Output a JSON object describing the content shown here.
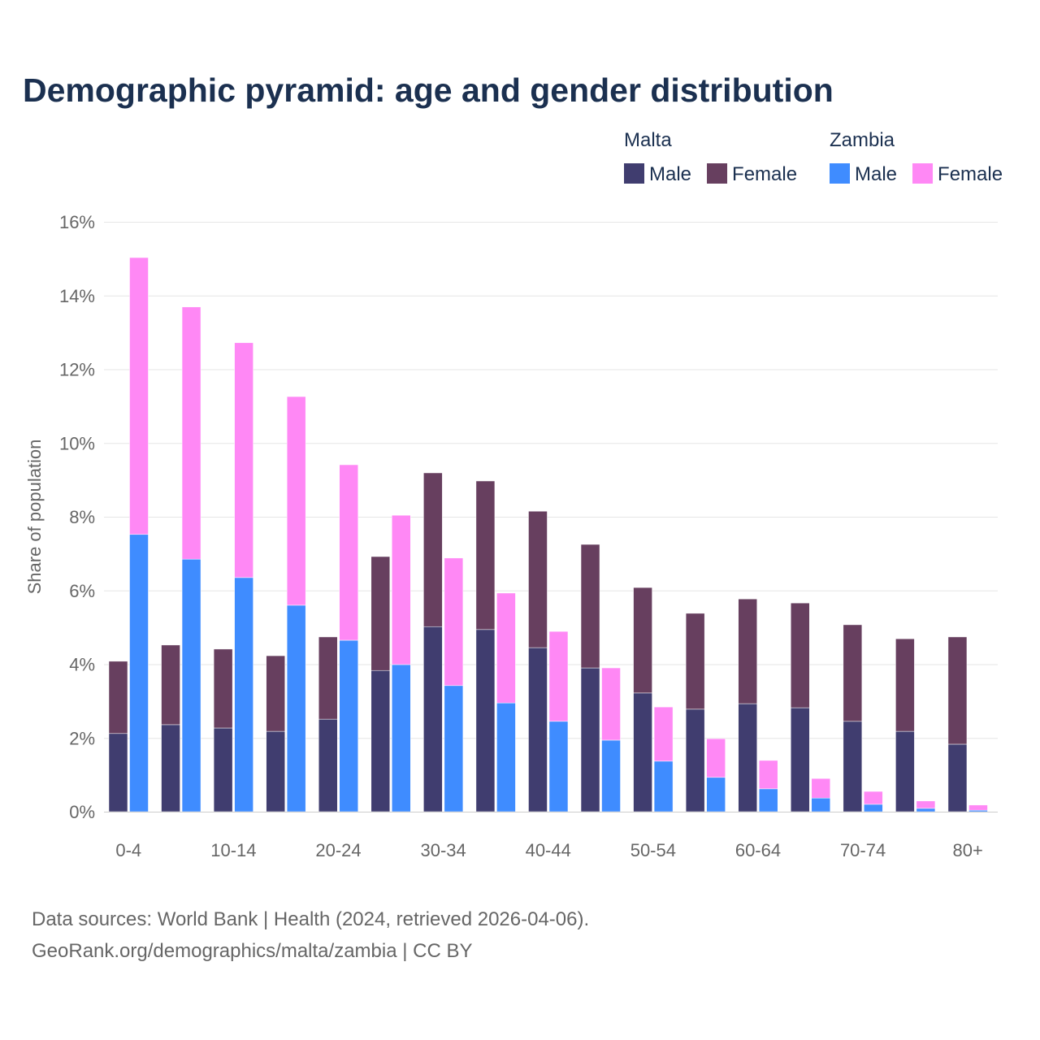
{
  "chart_data": {
    "type": "bar",
    "title": "Demographic pyramid: age and gender distribution",
    "ylabel": "Share of population",
    "xlabel": "",
    "ylim": [
      0,
      16
    ],
    "yticks": [
      "0%",
      "2%",
      "4%",
      "6%",
      "8%",
      "10%",
      "12%",
      "14%",
      "16%"
    ],
    "ytick_values": [
      0,
      2,
      4,
      6,
      8,
      10,
      12,
      14,
      16
    ],
    "grid": true,
    "legend_position": "top-right",
    "categories": [
      "0-4",
      "5-9",
      "10-14",
      "15-19",
      "20-24",
      "25-29",
      "30-34",
      "35-39",
      "40-44",
      "45-49",
      "50-54",
      "55-59",
      "60-64",
      "65-69",
      "70-74",
      "75-79",
      "80+"
    ],
    "shown_tick_labels": [
      "0-4",
      "10-14",
      "20-24",
      "30-34",
      "40-44",
      "50-54",
      "60-64",
      "70-74",
      "80+"
    ],
    "groups": [
      {
        "name": "Malta",
        "series": [
          {
            "name": "Male",
            "color": "#403d6f",
            "values": [
              2.12,
              2.36,
              2.27,
              2.18,
              2.51,
              3.83,
              5.02,
              4.94,
              4.45,
              3.9,
              3.22,
              2.78,
              2.93,
              2.82,
              2.45,
              2.18,
              1.83
            ]
          },
          {
            "name": "Female",
            "color": "#673f5f",
            "values": [
              1.96,
              2.16,
              2.14,
              2.05,
              2.23,
              3.09,
              4.17,
              4.03,
              3.7,
              3.35,
              2.86,
              2.6,
              2.84,
              2.84,
              2.62,
              2.51,
              2.91
            ]
          }
        ]
      },
      {
        "name": "Zambia",
        "series": [
          {
            "name": "Male",
            "color": "#3f8cff",
            "values": [
              7.52,
              6.85,
              6.35,
              5.6,
              4.65,
              3.99,
              3.42,
              2.95,
              2.45,
              1.94,
              1.37,
              0.93,
              0.62,
              0.37,
              0.2,
              0.09,
              0.04
            ]
          },
          {
            "name": "Female",
            "color": "#ff88f5",
            "values": [
              7.51,
              6.84,
              6.37,
              5.66,
              4.76,
              4.05,
              3.46,
              2.98,
              2.44,
              1.96,
              1.47,
              1.05,
              0.77,
              0.53,
              0.35,
              0.2,
              0.14
            ]
          }
        ]
      }
    ]
  },
  "footer": {
    "line1": "Data sources: World Bank | Health (2024, retrieved 2026-04-06).",
    "line2": "GeoRank.org/demographics/malta/zambia | CC BY"
  }
}
